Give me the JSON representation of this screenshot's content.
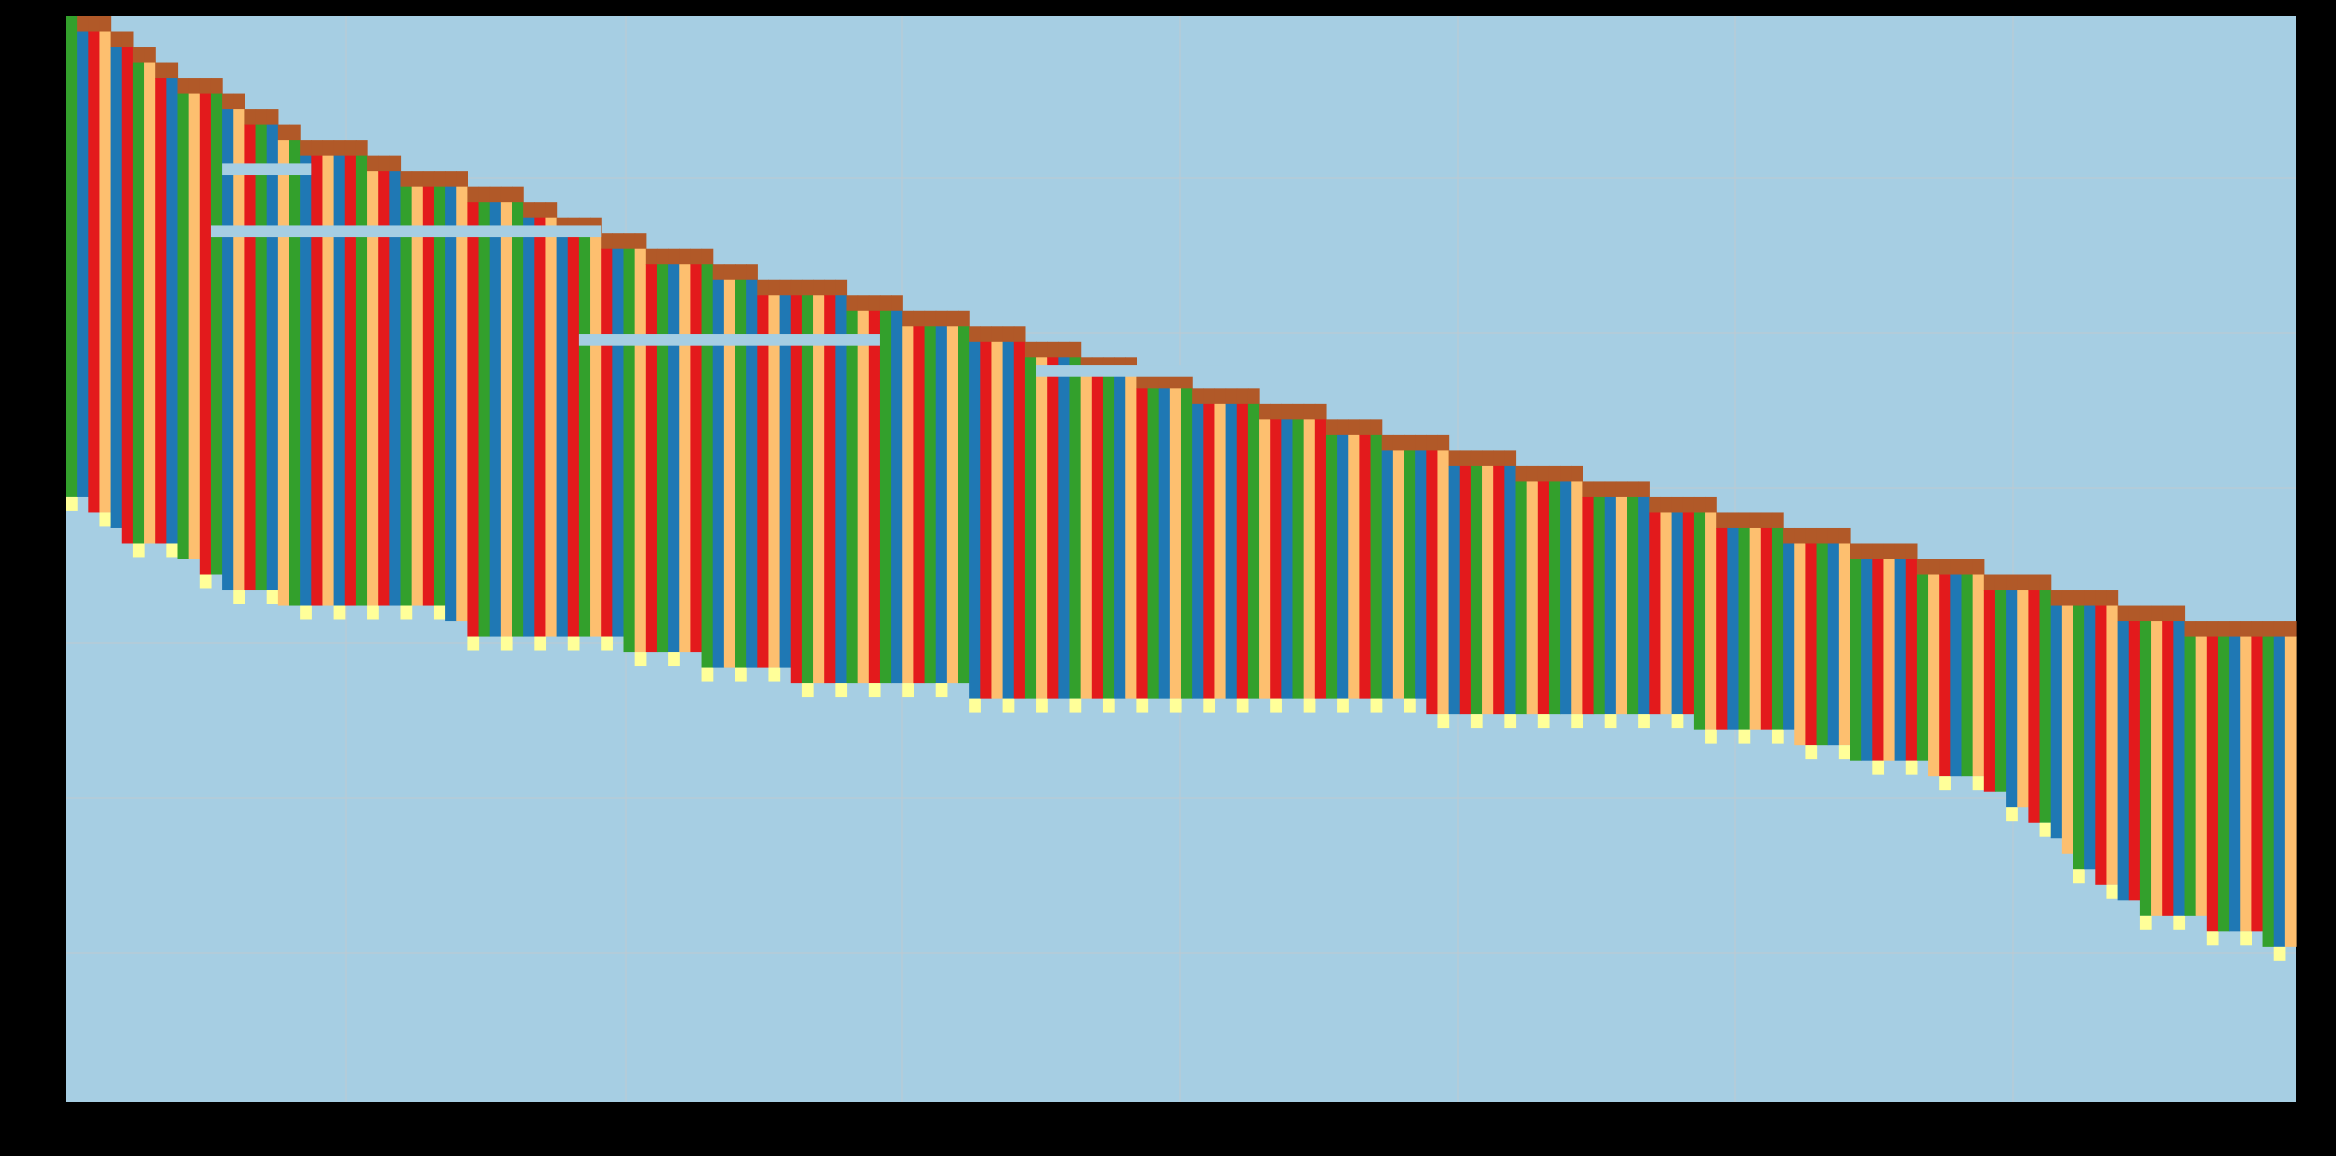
{
  "chart_data": {
    "type": "heatmap",
    "title": "",
    "xlabel": "",
    "ylabel": "",
    "grid": true,
    "legend": "none",
    "colors": {
      "figure_background": "#000000",
      "plot_background": "#a6cee3",
      "grid": "#bfc9d0",
      "blue": "#1f78b4",
      "green": "#33a02c",
      "red": "#e31a1c",
      "orange": "#fdbf6f",
      "brown": "#b15928",
      "light_yellow": "#ffff99"
    },
    "grid_columns": 200,
    "grid_rows": 70,
    "column_color_sequence": [
      "green",
      "blue",
      "red",
      "orange",
      "blue",
      "red",
      "green",
      "orange",
      "red",
      "blue",
      "green",
      "orange",
      "red",
      "green",
      "blue",
      "orange",
      "red",
      "green",
      "blue",
      "orange"
    ],
    "row_boundary_steps": [
      [
        1,
        1
      ],
      [
        4,
        2
      ],
      [
        6,
        3
      ],
      [
        8,
        4
      ],
      [
        10,
        5
      ],
      [
        14,
        6
      ],
      [
        16,
        7
      ],
      [
        19,
        8
      ],
      [
        21,
        9
      ],
      [
        27,
        10
      ],
      [
        30,
        11
      ],
      [
        36,
        12
      ],
      [
        41,
        13
      ],
      [
        44,
        14
      ],
      [
        48,
        15
      ],
      [
        52,
        16
      ],
      [
        58,
        17
      ],
      [
        62,
        18
      ],
      [
        70,
        19
      ],
      [
        75,
        20
      ],
      [
        81,
        21
      ],
      [
        86,
        22
      ],
      [
        91,
        23
      ],
      [
        96,
        24
      ],
      [
        101,
        25
      ],
      [
        107,
        26
      ],
      [
        113,
        27
      ],
      [
        118,
        28
      ],
      [
        124,
        29
      ],
      [
        130,
        30
      ],
      [
        136,
        31
      ],
      [
        142,
        32
      ],
      [
        148,
        33
      ],
      [
        154,
        34
      ],
      [
        160,
        35
      ],
      [
        166,
        36
      ],
      [
        172,
        37
      ],
      [
        178,
        38
      ],
      [
        184,
        39
      ],
      [
        190,
        40
      ],
      [
        200,
        41
      ]
    ],
    "band_start_rows": [
      0,
      1,
      2,
      4,
      5,
      7,
      8,
      9,
      10,
      11,
      12,
      13,
      14,
      15,
      16,
      17,
      18,
      19,
      20,
      21,
      22,
      23,
      24,
      25,
      26,
      27,
      28,
      29,
      30,
      31,
      32,
      33,
      34,
      35,
      36,
      37,
      38,
      39,
      40,
      41
    ],
    "column_end_rows": [
      31,
      31,
      32,
      32,
      33,
      34,
      34,
      34,
      34,
      34,
      35,
      35,
      36,
      36,
      37,
      37,
      37,
      37,
      37,
      38,
      38,
      38,
      38,
      38,
      38,
      38,
      38,
      38,
      38,
      38,
      38,
      38,
      38,
      38,
      39,
      39,
      40,
      40,
      40,
      40,
      40,
      40,
      40,
      40,
      40,
      40,
      40,
      40,
      40,
      40,
      41,
      41,
      41,
      41,
      41,
      41,
      41,
      42,
      42,
      42,
      42,
      42,
      42,
      42,
      42,
      43,
      43,
      43,
      43,
      43,
      43,
      43,
      43,
      43,
      43,
      43,
      43,
      43,
      43,
      43,
      43,
      44,
      44,
      44,
      44,
      44,
      44,
      44,
      44,
      44,
      44,
      44,
      44,
      44,
      44,
      44,
      44,
      44,
      44,
      44,
      44,
      44,
      44,
      44,
      44,
      44,
      44,
      44,
      44,
      44,
      44,
      44,
      44,
      44,
      44,
      44,
      44,
      44,
      44,
      44,
      44,
      44,
      45,
      45,
      45,
      45,
      45,
      45,
      45,
      45,
      45,
      45,
      45,
      45,
      45,
      45,
      45,
      45,
      45,
      45,
      45,
      45,
      45,
      45,
      45,
      45,
      46,
      46,
      46,
      46,
      46,
      46,
      46,
      46,
      46,
      47,
      47,
      47,
      47,
      47,
      48,
      48,
      48,
      48,
      48,
      48,
      48,
      49,
      49,
      49,
      49,
      49,
      50,
      50,
      51,
      51,
      52,
      52,
      53,
      54,
      55,
      55,
      56,
      56,
      57,
      57,
      58,
      58,
      58,
      58,
      58,
      58,
      59,
      59,
      59,
      59,
      59,
      60,
      60,
      60
    ]
  }
}
